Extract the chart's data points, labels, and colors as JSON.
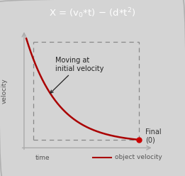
{
  "title_bg": "#676767",
  "title_fg": "#ffffff",
  "bg_color": "#d4d4d4",
  "plot_bg": "#e8e8e8",
  "curve_color": "#aa0000",
  "curve_linewidth": 1.8,
  "dashed_color": "#888888",
  "xlabel": "time",
  "ylabel": "velocity",
  "annotation_text": "Moving at\ninitial velocity",
  "final_label": "Final\n(0)",
  "legend_label": "object velocity",
  "dot_color": "#cc0000",
  "dot_size": 5,
  "arrow_color": "#aaaaaa",
  "text_color": "#555555"
}
